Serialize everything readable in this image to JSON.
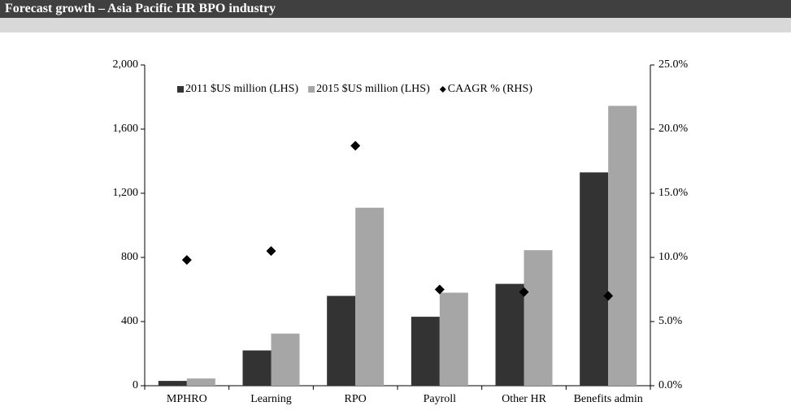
{
  "chart_data": {
    "type": "bar",
    "title": "Forecast growth – Asia Pacific HR BPO industry",
    "categories": [
      "MPHRO",
      "Learning",
      "RPO",
      "Payroll",
      "Other HR",
      "Benefits admin"
    ],
    "series": [
      {
        "name": "2011 $US million (LHS)",
        "color": "#333333",
        "values": [
          30,
          220,
          560,
          430,
          635,
          1330
        ]
      },
      {
        "name": "2015 $US million (LHS)",
        "color": "#a6a6a6",
        "values": [
          45,
          325,
          1110,
          580,
          845,
          1745
        ]
      },
      {
        "name": "CAAGR % (RHS)",
        "color": "#000000",
        "axis": "y2",
        "marker": "diamond",
        "values": [
          9.8,
          10.5,
          18.7,
          7.5,
          7.3,
          7.0
        ]
      }
    ],
    "ylim": [
      0,
      2000
    ],
    "yticks": [
      0,
      400,
      800,
      {
        "value": 1200,
        "label": "1,200"
      },
      {
        "value": 1600,
        "label": "1,600"
      },
      {
        "value": 2000,
        "label": "2,000"
      }
    ],
    "y2lim": [
      0,
      25
    ],
    "y2ticks": [
      {
        "value": 0,
        "label": "0.0%"
      },
      {
        "value": 5,
        "label": "5.0%"
      },
      {
        "value": 10,
        "label": "10.0%"
      },
      {
        "value": 15,
        "label": "15.0%"
      },
      {
        "value": 20,
        "label": "20.0%"
      },
      {
        "value": 25,
        "label": "25.0%"
      }
    ],
    "legend": "top"
  }
}
